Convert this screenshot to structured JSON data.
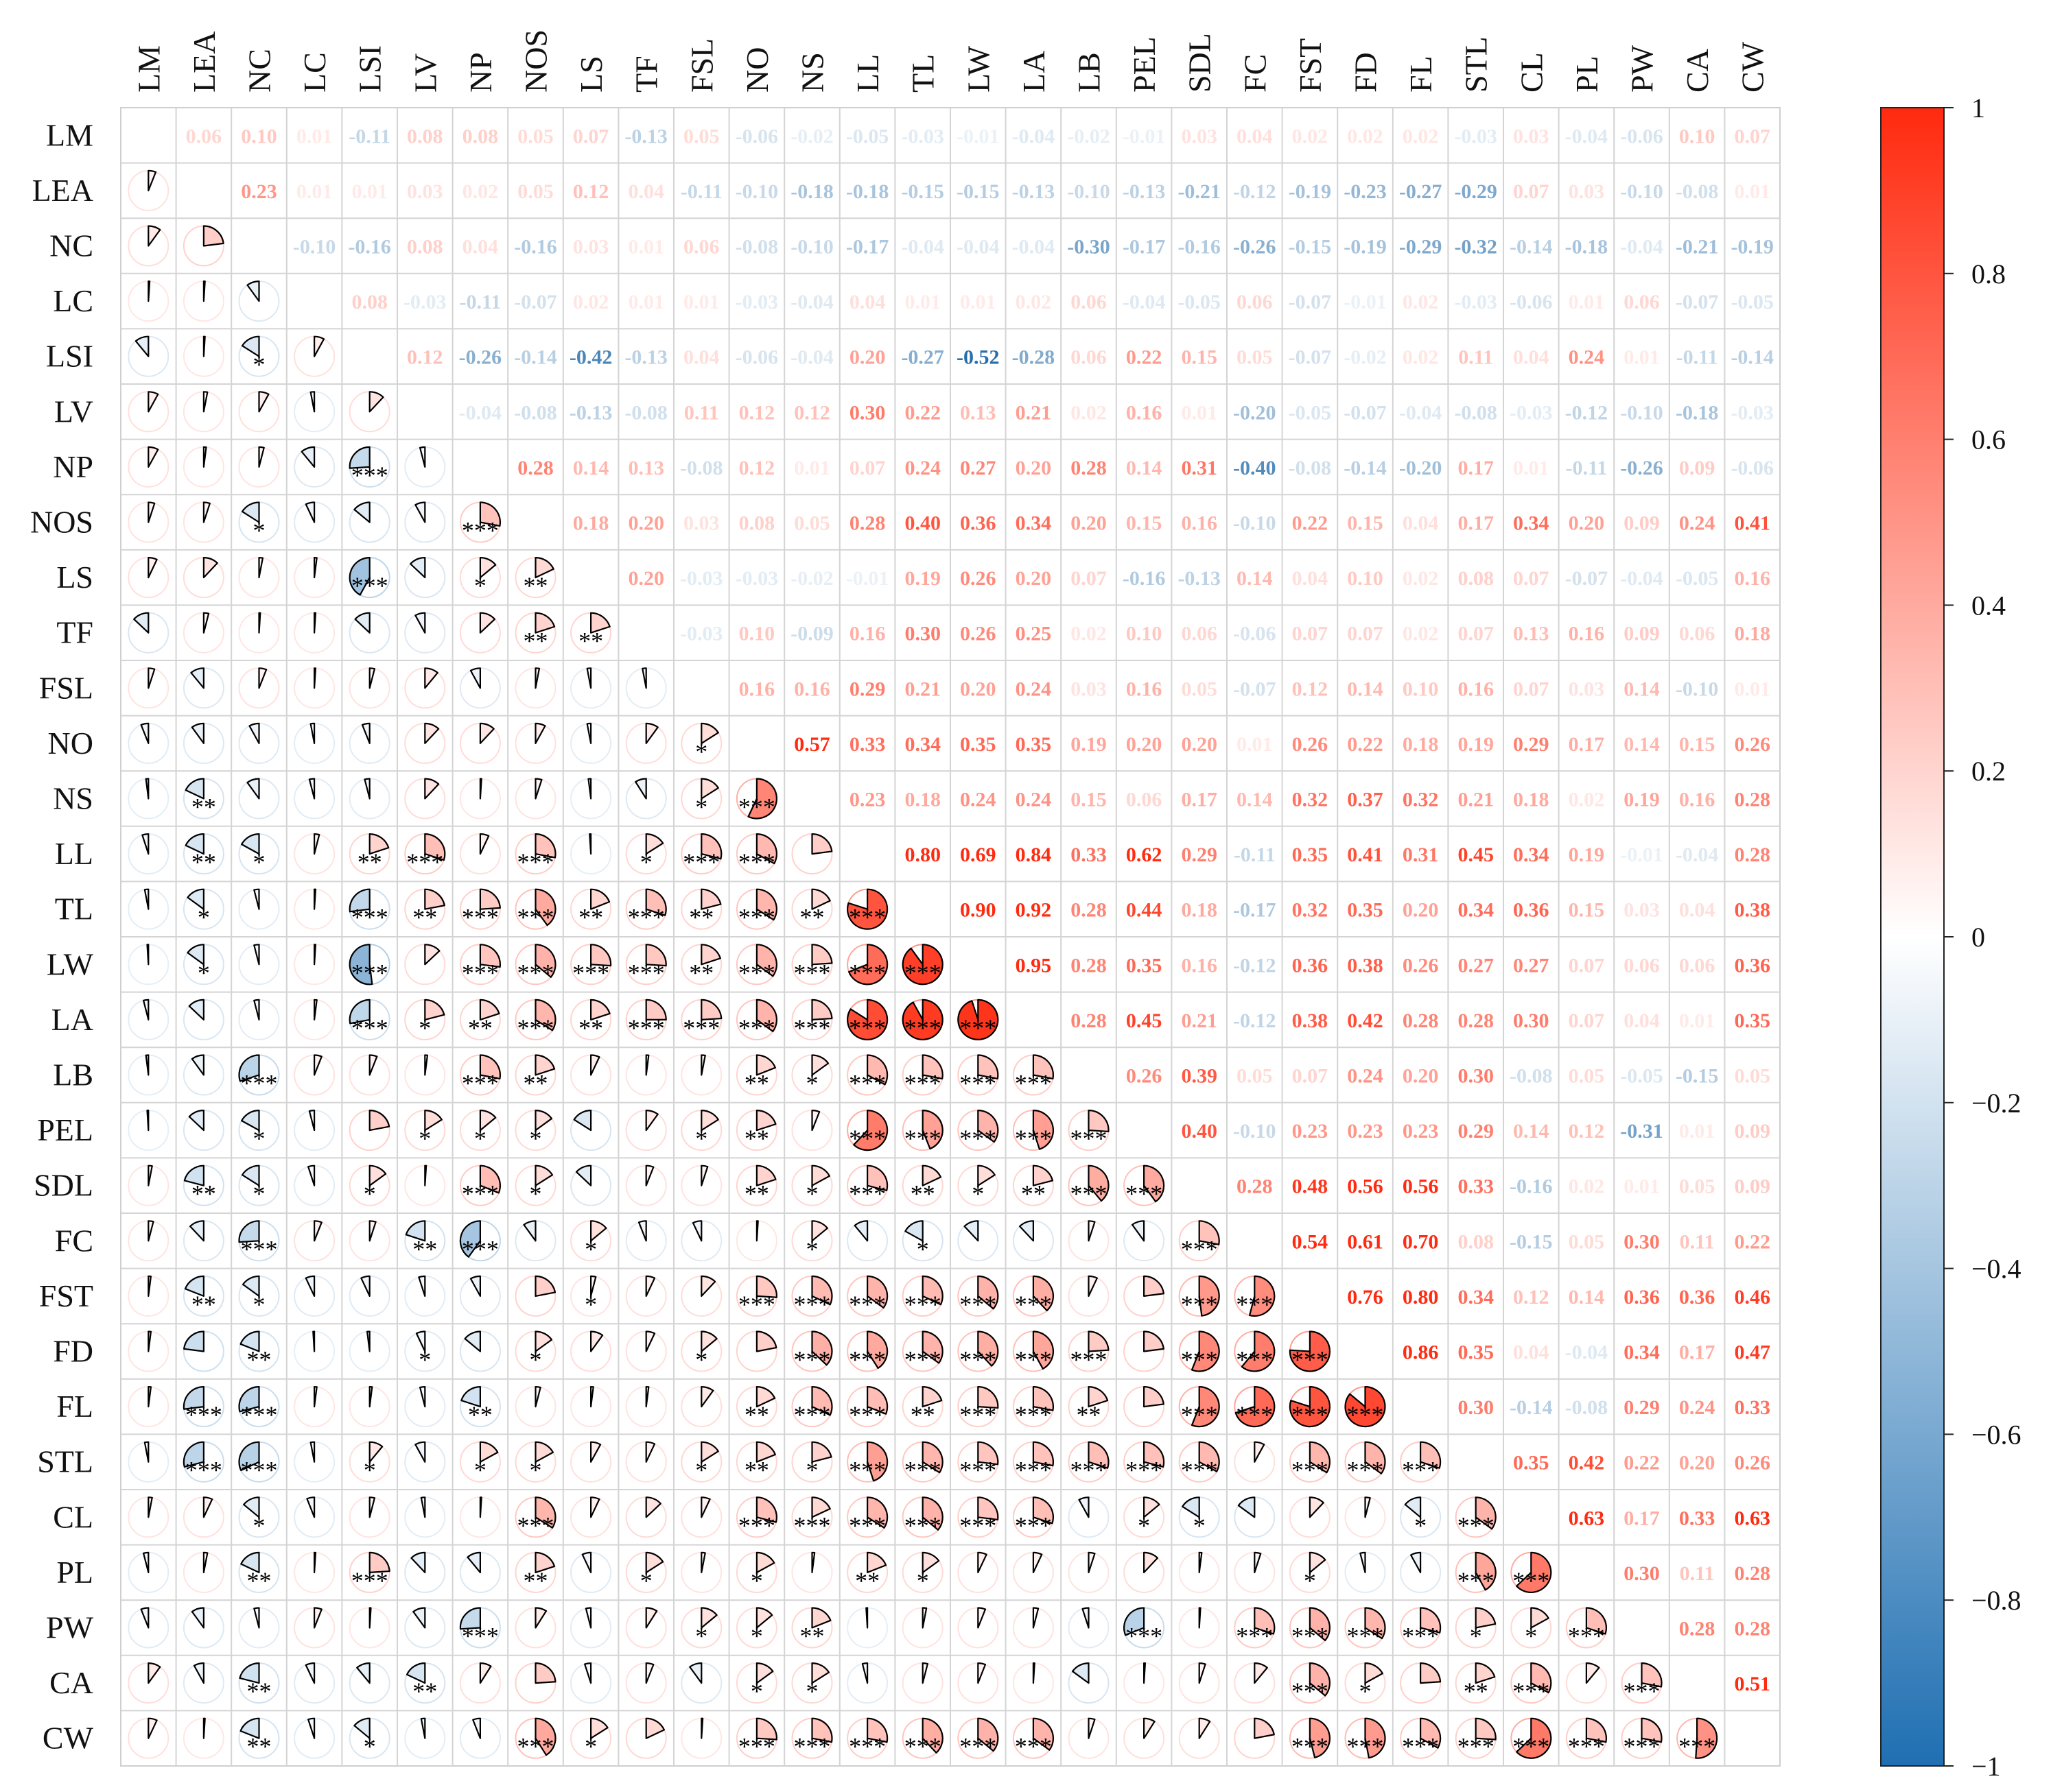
{
  "chart_data": {
    "type": "heatmap",
    "variables": [
      "LM",
      "LEA",
      "NC",
      "LC",
      "LSI",
      "LV",
      "NP",
      "NOS",
      "LS",
      "TF",
      "FSL",
      "NO",
      "NS",
      "LL",
      "TL",
      "LW",
      "LA",
      "LB",
      "PEL",
      "SDL",
      "FC",
      "FST",
      "FD",
      "FL",
      "STL",
      "CL",
      "PL",
      "PW",
      "CA",
      "CW"
    ],
    "upper_rows": [
      "0.06 0.10 0.01 -0.11 0.08 0.08 0.05 0.07 -0.13 0.05 -0.06 -0.02 -0.05 -0.03 -0.01 -0.04 -0.02 -0.01 0.03 0.04 0.02 0.02 0.02 -0.03 0.03 -0.04 -0.06 0.10 0.07",
      "0.23 0.01 0.01 0.03 0.02 0.05 0.12 0.04 -0.11 -0.10 -0.18 -0.18 -0.15 -0.15 -0.13 -0.10 -0.13 -0.21 -0.12 -0.19 -0.23 -0.27 -0.29 0.07 0.03 -0.10 -0.08 0.01",
      "-0.10 -0.16 0.08 0.04 -0.16 0.03 0.01 0.06 -0.08 -0.10 -0.17 -0.04 -0.04 -0.04 -0.30 -0.17 -0.16 -0.26 -0.15 -0.19 -0.29 -0.32 -0.14 -0.18 -0.04 -0.21 -0.19",
      "0.08 -0.03 -0.11 -0.07 0.02 0.01 0.01 -0.03 -0.04 0.04 0.01 0.01 0.02 0.06 -0.04 -0.05 0.06 -0.07 -0.01 0.02 -0.03 -0.06 0.01 0.06 -0.07 -0.05",
      "0.12 -0.26 -0.14 -0.42 -0.13 0.04 -0.06 -0.04 0.20 -0.27 -0.52 -0.28 0.06 0.22 0.15 0.05 -0.07 -0.02 0.02 0.11 0.04 0.24 0.01 -0.11 -0.14",
      "-0.04 -0.08 -0.13 -0.08 0.11 0.12 0.12 0.30 0.22 0.13 0.21 0.02 0.16 0.01 -0.20 -0.05 -0.07 -0.04 -0.08 -0.03 -0.12 -0.10 -0.18 -0.03",
      "0.28 0.14 0.13 -0.08 0.12 0.01 0.07 0.24 0.27 0.20 0.28 0.14 0.31 -0.40 -0.08 -0.14 -0.20 0.17 0.01 -0.11 -0.26 0.09 -0.06",
      "0.18 0.20 0.03 0.08 0.05 0.28 0.40 0.36 0.34 0.20 0.15 0.16 -0.10 0.22 0.15 0.04 0.17 0.34 0.20 0.09 0.24 0.41",
      "0.20 -0.03 -0.03 -0.02 -0.01 0.19 0.26 0.20 0.07 -0.16 -0.13 0.14 0.04 0.10 0.02 0.08 0.07 -0.07 -0.04 -0.05 0.16",
      "-0.03 0.10 -0.09 0.16 0.30 0.26 0.25 0.02 0.10 0.06 -0.06 0.07 0.07 0.02 0.07 0.13 0.16 0.09 0.06 0.18",
      "0.16 0.16 0.29 0.21 0.20 0.24 0.03 0.16 0.05 -0.07 0.12 0.14 0.10 0.16 0.07 0.03 0.14 -0.10 0.01",
      "0.57 0.33 0.34 0.35 0.35 0.19 0.20 0.20 0.01 0.26 0.22 0.18 0.19 0.29 0.17 0.14 0.15 0.26",
      "0.23 0.18 0.24 0.24 0.15 0.06 0.17 0.14 0.32 0.37 0.32 0.21 0.18 0.02 0.19 0.16 0.28",
      "0.80 0.69 0.84 0.33 0.62 0.29 -0.11 0.35 0.41 0.31 0.45 0.34 0.19 -0.01 -0.04 0.28",
      "0.90 0.92 0.28 0.44 0.18 -0.17 0.32 0.35 0.20 0.34 0.36 0.15 0.03 0.04 0.38",
      "0.95 0.28 0.35 0.16 -0.12 0.36 0.38 0.26 0.27 0.27 0.07 0.06 0.06 0.36",
      "0.28 0.45 0.21 -0.12 0.38 0.42 0.28 0.28 0.30 0.07 0.04 0.01 0.35",
      "0.26 0.39 0.05 0.07 0.24 0.20 0.30 -0.08 0.05 -0.05 -0.15 0.05",
      "0.40 -0.10 0.23 0.23 0.23 0.29 0.14 0.12 -0.31 0.01 0.09",
      "0.28 0.48 0.56 0.56 0.33 -0.16 0.02 0.01 0.05 0.09",
      "0.54 0.61 0.70 0.08 -0.15 0.05 0.30 0.11 0.22",
      "0.76 0.80 0.34 0.12 0.14 0.36 0.36 0.46",
      "0.86 0.35 0.04 -0.04 0.34 0.17 0.47",
      "0.30 -0.14 -0.08 0.29 0.24 0.33",
      "0.35 0.42 0.22 0.20 0.26",
      "0.63 0.17 0.33 0.63",
      "0.30 0.11 0.28",
      "0.28 0.28",
      "0.51",
      ""
    ],
    "lower_stars": [
      [],
      [
        ""
      ],
      [
        "",
        ""
      ],
      [
        "",
        "",
        ""
      ],
      [
        "",
        "",
        "*",
        ""
      ],
      [
        "",
        "",
        "",
        "",
        ""
      ],
      [
        "",
        "",
        "",
        "",
        "***",
        ""
      ],
      [
        "",
        "",
        "*",
        "",
        "",
        "",
        "***"
      ],
      [
        "",
        "",
        "",
        "",
        "***",
        "",
        "*",
        "**"
      ],
      [
        "",
        "",
        "",
        "",
        "",
        "",
        "",
        "**",
        "**"
      ],
      [
        "",
        "",
        "",
        "",
        "",
        "",
        "",
        "",
        "",
        ""
      ],
      [
        "",
        "",
        "",
        "",
        "",
        "",
        "",
        "",
        "",
        "",
        "*"
      ],
      [
        "",
        "**",
        "",
        "",
        "",
        "",
        "",
        "",
        "",
        "",
        "*",
        "***"
      ],
      [
        "",
        "**",
        "*",
        "",
        "**",
        "***",
        "",
        "***",
        "",
        "*",
        "***",
        "***",
        ""
      ],
      [
        "",
        "*",
        "",
        "",
        "***",
        "**",
        "***",
        "***",
        "**",
        "***",
        "**",
        "***",
        "**",
        "***"
      ],
      [
        "",
        "*",
        "",
        "",
        "***",
        "",
        "***",
        "***",
        "***",
        "***",
        "**",
        "***",
        "***",
        "***",
        "***"
      ],
      [
        "",
        "",
        "",
        "",
        "***",
        "*",
        "**",
        "***",
        "**",
        "***",
        "***",
        "***",
        "***",
        "***",
        "***",
        "***"
      ],
      [
        "",
        "",
        "***",
        "",
        "",
        "",
        "***",
        "**",
        "",
        "",
        "",
        "**",
        "*",
        "***",
        "***",
        "***",
        "***"
      ],
      [
        "",
        "",
        "*",
        "",
        "",
        "*",
        "*",
        "*",
        "",
        "",
        "*",
        "**",
        "",
        "***",
        "***",
        "***",
        "***",
        "***"
      ],
      [
        "",
        "**",
        "*",
        "",
        "*",
        "",
        "***",
        "*",
        "",
        "",
        "",
        "**",
        "*",
        "***",
        "**",
        "*",
        "**",
        "***",
        "***"
      ],
      [
        "",
        "",
        "***",
        "",
        "",
        "**",
        "***",
        "",
        "*",
        "",
        "",
        "",
        "*",
        "",
        "*",
        "",
        "",
        "",
        "",
        "***"
      ],
      [
        "",
        "**",
        "*",
        "",
        "",
        "",
        "",
        "",
        "*",
        "",
        "",
        "***",
        "***",
        "***",
        "***",
        "***",
        "***",
        "",
        "",
        "***",
        "***"
      ],
      [
        "",
        "",
        "**",
        "",
        "",
        "*",
        "",
        "*",
        "",
        "",
        "*",
        "",
        "***",
        "***",
        "***",
        "***",
        "***",
        "***",
        "",
        "***",
        "***",
        "***"
      ],
      [
        "",
        "***",
        "***",
        "",
        "",
        "",
        "**",
        "",
        "",
        "",
        "",
        "**",
        "***",
        "***",
        "**",
        "***",
        "***",
        "**",
        "",
        "***",
        "***",
        "***",
        "***"
      ],
      [
        "",
        "***",
        "***",
        "",
        "*",
        "",
        "*",
        "*",
        "",
        "",
        "*",
        "**",
        "*",
        "***",
        "***",
        "***",
        "***",
        "***",
        "***",
        "***",
        "",
        "***",
        "***",
        "***"
      ],
      [
        "",
        "",
        "*",
        "",
        "",
        "",
        "",
        "***",
        "",
        "",
        "",
        "***",
        "***",
        "***",
        "***",
        "***",
        "***",
        "",
        "*",
        "*",
        "",
        "",
        "",
        "*",
        "***"
      ],
      [
        "",
        "",
        "**",
        "",
        "***",
        "",
        "",
        "**",
        "",
        "*",
        "",
        "*",
        "",
        "**",
        "*",
        "",
        "",
        "",
        "",
        "",
        "",
        "*",
        "",
        "",
        "***",
        "***"
      ],
      [
        "",
        "",
        "",
        "",
        "",
        "",
        "***",
        "",
        "",
        "",
        "*",
        "*",
        "**",
        "",
        "",
        "",
        "",
        "",
        "***",
        "",
        "***",
        "***",
        "***",
        "***",
        "*",
        "*",
        "***"
      ],
      [
        "",
        "",
        "**",
        "",
        "",
        "**",
        "",
        "",
        "",
        "",
        "",
        "*",
        "*",
        "",
        "",
        "",
        "",
        "",
        "",
        "",
        "",
        "***",
        "*",
        "",
        "**",
        "***",
        "",
        "***"
      ],
      [
        "",
        "",
        "**",
        "",
        "*",
        "",
        "",
        "***",
        "*",
        "",
        "",
        "***",
        "***",
        "***",
        "***",
        "***",
        "***",
        "",
        "",
        "",
        "",
        "***",
        "***",
        "***",
        "***",
        "***",
        "***",
        "***",
        "***"
      ]
    ],
    "colorbar": {
      "ticks": [
        "1",
        "0.8",
        "0.6",
        "0.4",
        "0.2",
        "0",
        "−0.2",
        "−0.4",
        "−0.6",
        "−0.8",
        "−1"
      ],
      "colormap": "RdBu_r",
      "low_color": "#1f6fb2",
      "mid_color": "#ffffff",
      "high_color": "#ff2a0f"
    },
    "grid": true,
    "significance_marks": [
      "*",
      "**",
      "***"
    ]
  }
}
